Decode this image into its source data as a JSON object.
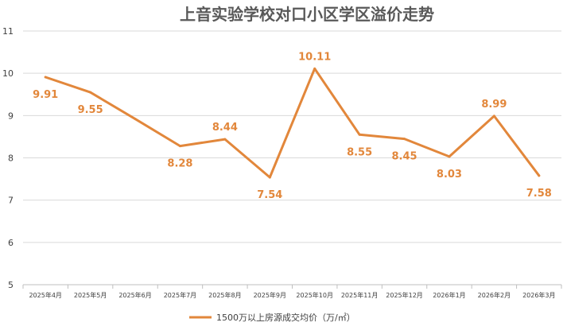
{
  "chart_data": {
    "type": "line",
    "title": "上音实验学校对口小区学区溢价走势",
    "xlabel": "",
    "ylabel": "",
    "ylim": [
      5,
      11
    ],
    "yticks": [
      "5",
      "6",
      "7",
      "8",
      "9",
      "10",
      "11"
    ],
    "grid": true,
    "legend_position": "bottom",
    "categories": [
      "2025年4月",
      "2025年5月",
      "2025年6月",
      "2025年7月",
      "2025年8月",
      "2025年9月",
      "2025年10月",
      "2025年11月",
      "2025年12月",
      "2026年1月",
      "2026年2月",
      "2026年3月"
    ],
    "series": [
      {
        "name": "1500万以上房源成交均价（万/㎡）",
        "color": "#E2873B",
        "values": [
          9.91,
          9.55,
          8.92,
          8.28,
          8.44,
          7.54,
          10.11,
          8.55,
          8.45,
          8.03,
          8.99,
          7.58
        ],
        "labels": [
          "9.91",
          "9.55",
          "",
          "8.28",
          "8.44",
          "7.54",
          "10.11",
          "8.55",
          "8.45",
          "8.03",
          "8.99",
          "7.58"
        ]
      }
    ]
  }
}
